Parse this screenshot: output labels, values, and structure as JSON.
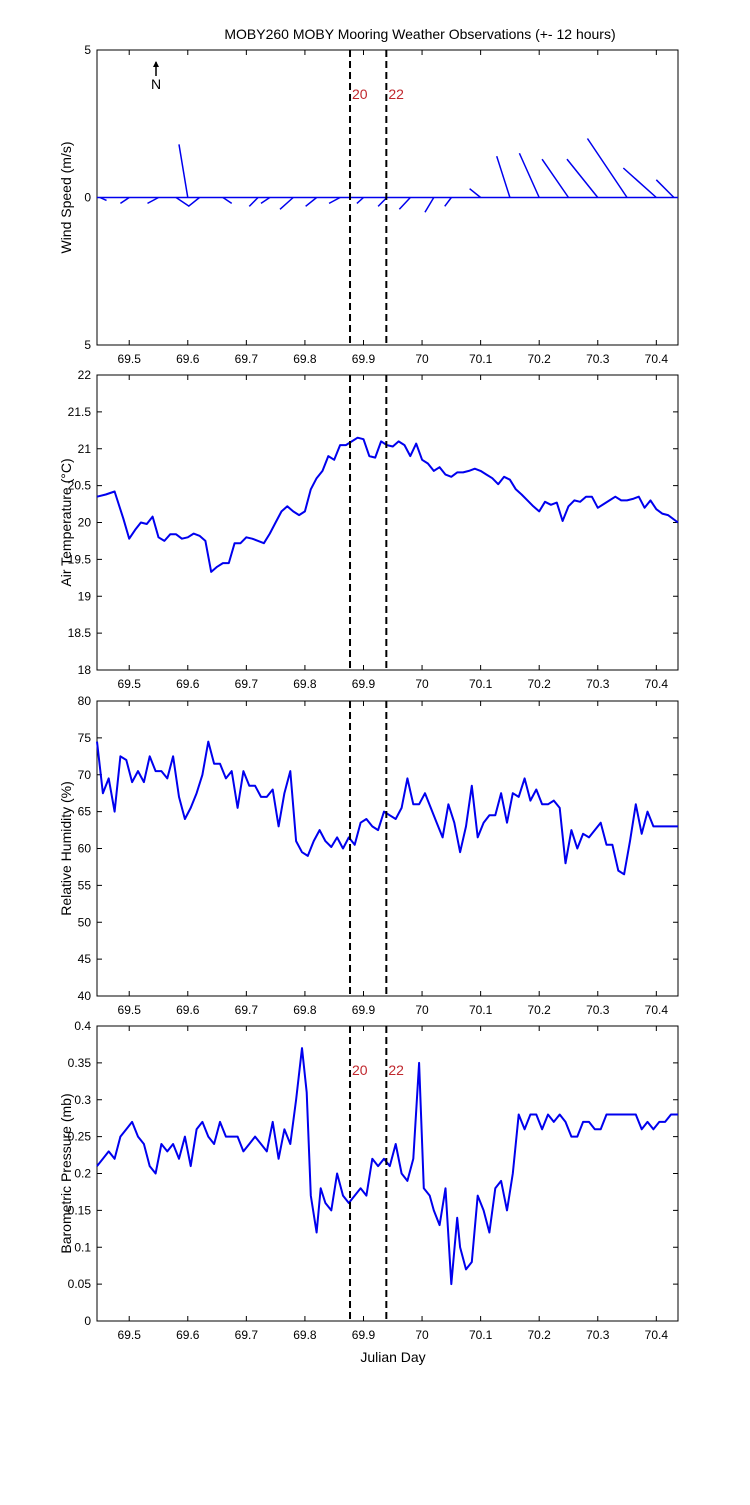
{
  "title": "MOBY260 MOBY Mooring Weather Observations (+- 12 hours)",
  "xlabel": "Julian Day",
  "x_ticks": [
    "69.5",
    "69.6",
    "69.7",
    "69.8",
    "69.9",
    "70",
    "70.1",
    "70.2",
    "70.3",
    "70.4"
  ],
  "xlim": [
    69.445,
    70.437
  ],
  "line_color": "#0000ee",
  "marker_color": "#c0272d",
  "markers": [
    {
      "x": 69.877,
      "label": "20"
    },
    {
      "x": 69.939,
      "label": "22"
    }
  ],
  "north_label": "N",
  "chart_data": [
    {
      "type": "line",
      "subtype": "wind-vector-stick",
      "ylabel": "Wind Speed (m/s)",
      "ylim": [
        -5,
        5
      ],
      "y_ticks": [
        "5",
        "0",
        "5"
      ],
      "north_label": "N",
      "sticks": [
        {
          "x": 69.45,
          "u": 0.3,
          "v": -0.1
        },
        {
          "x": 69.5,
          "u": -0.4,
          "v": -0.2
        },
        {
          "x": 69.55,
          "u": -0.5,
          "v": -0.2
        },
        {
          "x": 69.58,
          "u": 0.6,
          "v": -0.3
        },
        {
          "x": 69.6,
          "u": -0.4,
          "v": 1.8
        },
        {
          "x": 69.62,
          "u": -0.5,
          "v": -0.3
        },
        {
          "x": 69.66,
          "u": 0.4,
          "v": -0.2
        },
        {
          "x": 69.72,
          "u": -0.4,
          "v": -0.3
        },
        {
          "x": 69.74,
          "u": -0.4,
          "v": -0.2
        },
        {
          "x": 69.78,
          "u": -0.6,
          "v": -0.4
        },
        {
          "x": 69.82,
          "u": -0.5,
          "v": -0.3
        },
        {
          "x": 69.86,
          "u": -0.5,
          "v": -0.2
        },
        {
          "x": 69.9,
          "u": -0.3,
          "v": -0.2
        },
        {
          "x": 69.94,
          "u": -0.4,
          "v": -0.3
        },
        {
          "x": 69.98,
          "u": -0.5,
          "v": -0.4
        },
        {
          "x": 70.02,
          "u": -0.4,
          "v": -0.5
        },
        {
          "x": 70.05,
          "u": -0.3,
          "v": -0.3
        },
        {
          "x": 70.1,
          "u": -0.5,
          "v": 0.3
        },
        {
          "x": 70.15,
          "u": -0.6,
          "v": 1.4
        },
        {
          "x": 70.2,
          "u": -0.9,
          "v": 1.5
        },
        {
          "x": 70.25,
          "u": -1.2,
          "v": 1.3
        },
        {
          "x": 70.3,
          "u": -1.4,
          "v": 1.3
        },
        {
          "x": 70.35,
          "u": -1.8,
          "v": 2.0
        },
        {
          "x": 70.4,
          "u": -1.5,
          "v": 1.0
        },
        {
          "x": 70.43,
          "u": -0.8,
          "v": 0.6
        }
      ]
    },
    {
      "type": "line",
      "ylabel": "Air Temperature (°C)",
      "ylim": [
        18,
        22
      ],
      "y_ticks": [
        "18",
        "18.5",
        "19",
        "19.5",
        "20",
        "20.5",
        "21",
        "21.5",
        "22"
      ],
      "x": [
        69.445,
        69.46,
        69.475,
        69.49,
        69.5,
        69.51,
        69.52,
        69.53,
        69.54,
        69.55,
        69.56,
        69.57,
        69.58,
        69.59,
        69.6,
        69.61,
        69.62,
        69.63,
        69.64,
        69.65,
        69.66,
        69.67,
        69.68,
        69.69,
        69.7,
        69.71,
        69.72,
        69.73,
        69.74,
        69.75,
        69.76,
        69.77,
        69.78,
        69.79,
        69.8,
        69.81,
        69.82,
        69.83,
        69.84,
        69.85,
        69.86,
        69.87,
        69.88,
        69.89,
        69.9,
        69.91,
        69.92,
        69.93,
        69.94,
        69.95,
        69.96,
        69.97,
        69.98,
        69.99,
        70.0,
        70.01,
        70.02,
        70.03,
        70.04,
        70.05,
        70.06,
        70.07,
        70.08,
        70.09,
        70.1,
        70.11,
        70.12,
        70.13,
        70.14,
        70.15,
        70.16,
        70.17,
        70.18,
        70.19,
        70.2,
        70.21,
        70.22,
        70.23,
        70.24,
        70.25,
        70.26,
        70.27,
        70.28,
        70.29,
        70.3,
        70.31,
        70.32,
        70.33,
        70.34,
        70.35,
        70.36,
        70.37,
        70.38,
        70.39,
        70.4,
        70.41,
        70.42,
        70.437
      ],
      "y": [
        20.35,
        20.38,
        20.42,
        20.05,
        19.78,
        19.9,
        20.0,
        19.98,
        20.08,
        19.8,
        19.75,
        19.84,
        19.84,
        19.78,
        19.8,
        19.85,
        19.82,
        19.75,
        19.33,
        19.4,
        19.45,
        19.45,
        19.72,
        19.72,
        19.8,
        19.78,
        19.75,
        19.72,
        19.85,
        20.0,
        20.15,
        20.22,
        20.15,
        20.1,
        20.15,
        20.45,
        20.6,
        20.7,
        20.9,
        20.85,
        21.05,
        21.05,
        21.1,
        21.15,
        21.13,
        20.9,
        20.88,
        21.1,
        21.05,
        21.03,
        21.1,
        21.05,
        20.9,
        21.07,
        20.85,
        20.8,
        20.7,
        20.75,
        20.65,
        20.62,
        20.68,
        20.68,
        20.7,
        20.73,
        20.7,
        20.65,
        20.6,
        20.52,
        20.62,
        20.58,
        20.45,
        20.38,
        20.3,
        20.22,
        20.15,
        20.28,
        20.24,
        20.27,
        20.02,
        20.22,
        20.3,
        20.28,
        20.35,
        20.35,
        20.2,
        20.25,
        20.3,
        20.35,
        20.3,
        20.3,
        20.32,
        20.35,
        20.2,
        20.3,
        20.18,
        20.12,
        20.1,
        20.0
      ]
    },
    {
      "type": "line",
      "ylabel": "Relative Humidity (%)",
      "ylim": [
        40,
        80
      ],
      "y_ticks": [
        "40",
        "45",
        "50",
        "55",
        "60",
        "65",
        "70",
        "75",
        "80"
      ],
      "x": [
        69.445,
        69.455,
        69.465,
        69.475,
        69.485,
        69.495,
        69.505,
        69.515,
        69.525,
        69.535,
        69.545,
        69.555,
        69.565,
        69.575,
        69.585,
        69.595,
        69.605,
        69.615,
        69.625,
        69.635,
        69.645,
        69.655,
        69.665,
        69.675,
        69.685,
        69.695,
        69.705,
        69.715,
        69.725,
        69.735,
        69.745,
        69.755,
        69.765,
        69.775,
        69.785,
        69.795,
        69.805,
        69.815,
        69.825,
        69.835,
        69.845,
        69.855,
        69.865,
        69.875,
        69.885,
        69.895,
        69.905,
        69.915,
        69.925,
        69.935,
        69.945,
        69.955,
        69.965,
        69.975,
        69.985,
        69.995,
        70.005,
        70.015,
        70.025,
        70.035,
        70.045,
        70.055,
        70.065,
        70.075,
        70.085,
        70.095,
        70.105,
        70.115,
        70.125,
        70.135,
        70.145,
        70.155,
        70.165,
        70.175,
        70.185,
        70.195,
        70.205,
        70.215,
        70.225,
        70.235,
        70.245,
        70.255,
        70.265,
        70.275,
        70.285,
        70.295,
        70.305,
        70.315,
        70.325,
        70.335,
        70.345,
        70.355,
        70.365,
        70.375,
        70.385,
        70.395,
        70.405,
        70.415,
        70.425,
        70.437
      ],
      "y": [
        74.5,
        67.5,
        69.5,
        65.0,
        72.5,
        72.0,
        69.0,
        70.5,
        69.0,
        72.5,
        70.5,
        70.5,
        69.5,
        72.5,
        67.0,
        64.0,
        65.5,
        67.5,
        70.0,
        74.5,
        71.5,
        71.5,
        69.5,
        70.5,
        65.5,
        70.5,
        68.5,
        68.5,
        67.0,
        67.0,
        68.0,
        63.0,
        67.5,
        70.5,
        61.0,
        59.5,
        59.0,
        61.0,
        62.5,
        61.0,
        60.2,
        61.5,
        60.0,
        61.5,
        60.5,
        63.5,
        64.0,
        63.0,
        62.5,
        65.0,
        64.5,
        64.0,
        65.5,
        69.5,
        66.0,
        66.0,
        67.5,
        65.5,
        63.5,
        61.5,
        66.0,
        63.5,
        59.5,
        63.0,
        68.5,
        61.5,
        63.5,
        64.5,
        64.5,
        67.5,
        63.5,
        67.5,
        67.0,
        69.5,
        66.5,
        68.0,
        66.0,
        66.0,
        66.5,
        65.5,
        58.0,
        62.5,
        60.0,
        62.0,
        61.5,
        62.5,
        63.5,
        60.5,
        60.5,
        57.0,
        56.5,
        61.0,
        66.0,
        62.0,
        65.0,
        63.0,
        63.0,
        63.0,
        63.0,
        63.0
      ]
    },
    {
      "type": "line",
      "ylabel": "Barometric Pressure (mb)",
      "ylim": [
        0,
        0.4
      ],
      "y_ticks": [
        "0",
        "0.05",
        "0.1",
        "0.15",
        "0.2",
        "0.25",
        "0.3",
        "0.35",
        "0.4"
      ],
      "x": [
        69.445,
        69.455,
        69.465,
        69.475,
        69.485,
        69.495,
        69.505,
        69.515,
        69.525,
        69.535,
        69.545,
        69.555,
        69.565,
        69.575,
        69.585,
        69.595,
        69.605,
        69.615,
        69.625,
        69.635,
        69.645,
        69.655,
        69.665,
        69.675,
        69.685,
        69.695,
        69.705,
        69.715,
        69.725,
        69.735,
        69.745,
        69.755,
        69.765,
        69.775,
        69.785,
        69.795,
        69.803,
        69.81,
        69.82,
        69.827,
        69.835,
        69.845,
        69.855,
        69.865,
        69.875,
        69.885,
        69.895,
        69.905,
        69.915,
        69.925,
        69.935,
        69.945,
        69.955,
        69.965,
        69.975,
        69.985,
        69.995,
        70.003,
        70.013,
        70.02,
        70.03,
        70.04,
        70.05,
        70.06,
        70.065,
        70.075,
        70.085,
        70.095,
        70.105,
        70.115,
        70.125,
        70.135,
        70.145,
        70.155,
        70.165,
        70.175,
        70.185,
        70.195,
        70.205,
        70.215,
        70.225,
        70.235,
        70.245,
        70.255,
        70.265,
        70.275,
        70.285,
        70.295,
        70.305,
        70.315,
        70.325,
        70.335,
        70.345,
        70.355,
        70.365,
        70.375,
        70.385,
        70.395,
        70.405,
        70.415,
        70.425,
        70.437
      ],
      "y": [
        0.21,
        0.22,
        0.23,
        0.22,
        0.25,
        0.26,
        0.27,
        0.25,
        0.24,
        0.21,
        0.2,
        0.24,
        0.23,
        0.24,
        0.22,
        0.25,
        0.21,
        0.26,
        0.27,
        0.25,
        0.24,
        0.27,
        0.25,
        0.25,
        0.25,
        0.23,
        0.24,
        0.25,
        0.24,
        0.23,
        0.27,
        0.22,
        0.26,
        0.24,
        0.3,
        0.37,
        0.31,
        0.17,
        0.12,
        0.18,
        0.16,
        0.15,
        0.2,
        0.17,
        0.16,
        0.17,
        0.18,
        0.17,
        0.22,
        0.21,
        0.22,
        0.21,
        0.24,
        0.2,
        0.19,
        0.22,
        0.35,
        0.18,
        0.17,
        0.15,
        0.13,
        0.18,
        0.05,
        0.14,
        0.1,
        0.07,
        0.08,
        0.17,
        0.15,
        0.12,
        0.18,
        0.19,
        0.15,
        0.2,
        0.28,
        0.26,
        0.28,
        0.28,
        0.26,
        0.28,
        0.27,
        0.28,
        0.27,
        0.25,
        0.25,
        0.27,
        0.27,
        0.26,
        0.26,
        0.28,
        0.28,
        0.28,
        0.28,
        0.28,
        0.28,
        0.26,
        0.27,
        0.26,
        0.27,
        0.27,
        0.28,
        0.28
      ]
    }
  ]
}
